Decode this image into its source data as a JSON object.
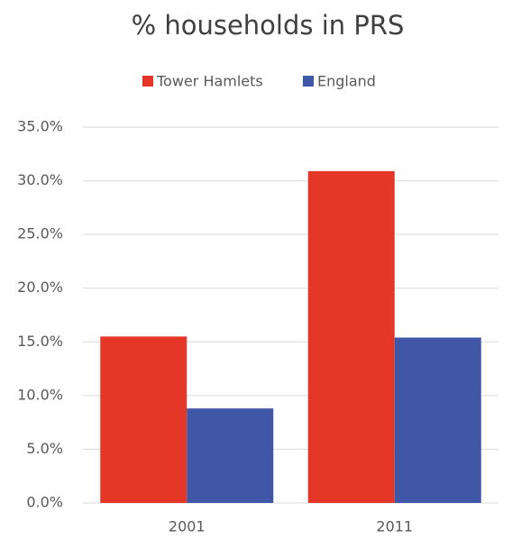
{
  "chart_data": {
    "type": "bar",
    "title": "% households in PRS",
    "categories": [
      "2001",
      "2011"
    ],
    "series": [
      {
        "name": "Tower Hamlets",
        "color": "#e53727",
        "values": [
          15.5,
          30.9
        ]
      },
      {
        "name": "England",
        "color": "#3f57a6",
        "values": [
          8.8,
          15.4
        ]
      }
    ],
    "ylim": [
      0,
      35
    ],
    "yticks": [
      {
        "value": 0,
        "label": "0.0%"
      },
      {
        "value": 5,
        "label": "5.0%"
      },
      {
        "value": 10,
        "label": "10.0%"
      },
      {
        "value": 15,
        "label": "15.0%"
      },
      {
        "value": 20,
        "label": "20.0%"
      },
      {
        "value": 25,
        "label": "25.0%"
      },
      {
        "value": 30,
        "label": "30.0%"
      },
      {
        "value": 35,
        "label": "35.0%"
      }
    ],
    "grid": true,
    "legend": "top"
  }
}
